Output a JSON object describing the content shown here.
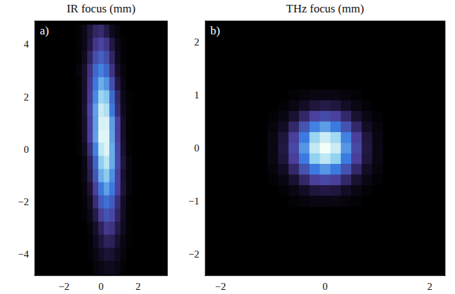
{
  "chart_data": [
    {
      "type": "heatmap",
      "title": "IR focus (mm)",
      "panel": "a)",
      "xlim": [
        -3.6,
        3.6
      ],
      "ylim": [
        -4.8,
        4.9
      ],
      "xticks": [
        {
          "value": -2,
          "label": "−2"
        },
        0,
        2
      ],
      "yticks": [
        {
          "value": -4,
          "label": "−4"
        },
        {
          "value": -2,
          "label": "−2"
        },
        0,
        2,
        4
      ],
      "cells": {
        "x": [
          -1.2,
          -0.9,
          -0.6,
          -0.3,
          0,
          0.3,
          0.6,
          0.9,
          1.2,
          1.5
        ],
        "y": [
          4.5,
          4,
          3.5,
          3,
          2.5,
          2,
          1.5,
          1,
          0.5,
          0,
          -0.5,
          -1,
          -1.5,
          -2,
          -2.5,
          -3,
          -3.5,
          -4,
          -4.5
        ],
        "values": [
          [
            0.01,
            0.04,
            0.1,
            0.16,
            0.18,
            0.12,
            0.05,
            0.02,
            0,
            0
          ],
          [
            0.01,
            0.04,
            0.11,
            0.22,
            0.27,
            0.22,
            0.11,
            0.04,
            0.01,
            0
          ],
          [
            0.01,
            0.05,
            0.16,
            0.31,
            0.39,
            0.31,
            0.16,
            0.05,
            0.01,
            0
          ],
          [
            0.02,
            0.07,
            0.21,
            0.42,
            0.52,
            0.42,
            0.21,
            0.07,
            0.02,
            0
          ],
          [
            0.01,
            0.07,
            0.23,
            0.49,
            0.65,
            0.57,
            0.31,
            0.11,
            0.03,
            0
          ],
          [
            0.01,
            0.07,
            0.24,
            0.54,
            0.78,
            0.73,
            0.43,
            0.17,
            0.04,
            0.01
          ],
          [
            0.01,
            0.08,
            0.27,
            0.61,
            0.89,
            0.83,
            0.49,
            0.19,
            0.05,
            0.01
          ],
          [
            0.01,
            0.07,
            0.25,
            0.6,
            0.93,
            0.93,
            0.6,
            0.25,
            0.07,
            0.01
          ],
          [
            0.01,
            0.07,
            0.25,
            0.61,
            0.95,
            0.95,
            0.61,
            0.25,
            0.07,
            0.01
          ],
          [
            0.01,
            0.05,
            0.2,
            0.52,
            0.87,
            0.94,
            0.64,
            0.29,
            0.08,
            0.01
          ],
          [
            0,
            0.03,
            0.15,
            0.41,
            0.75,
            0.86,
            0.64,
            0.3,
            0.1,
            0.02
          ],
          [
            0,
            0.03,
            0.13,
            0.35,
            0.65,
            0.74,
            0.56,
            0.26,
            0.08,
            0.02
          ],
          [
            0,
            0.02,
            0.09,
            0.25,
            0.49,
            0.61,
            0.49,
            0.25,
            0.09,
            0.02
          ],
          [
            0,
            0.01,
            0.06,
            0.19,
            0.37,
            0.46,
            0.37,
            0.19,
            0.06,
            0.01
          ],
          [
            0,
            0.01,
            0.04,
            0.12,
            0.25,
            0.34,
            0.29,
            0.16,
            0.06,
            0.01
          ],
          [
            0,
            0,
            0.02,
            0.07,
            0.15,
            0.23,
            0.21,
            0.12,
            0.05,
            0.01
          ],
          [
            0,
            0,
            0.01,
            0.05,
            0.1,
            0.15,
            0.14,
            0.08,
            0.03,
            0.01
          ],
          [
            0,
            0,
            0.01,
            0.03,
            0.06,
            0.09,
            0.08,
            0.05,
            0.02,
            0
          ],
          [
            0,
            0,
            0,
            0.02,
            0.03,
            0.05,
            0.05,
            0.03,
            0.01,
            0
          ]
        ]
      }
    },
    {
      "type": "heatmap",
      "title": "THz focus (mm)",
      "panel": "b)",
      "xlim": [
        -2.3,
        2.3
      ],
      "ylim": [
        -2.4,
        2.4
      ],
      "xticks": [
        {
          "value": -2,
          "label": "−2"
        },
        0,
        2
      ],
      "yticks": [
        {
          "value": -2,
          "label": "−2"
        },
        {
          "value": -1,
          "label": "−1"
        },
        0,
        1,
        2
      ],
      "cells": {
        "x": [
          -1,
          -0.8,
          -0.6,
          -0.4,
          -0.2,
          0,
          0.2,
          0.4,
          0.6,
          0.8,
          1
        ],
        "y": [
          1,
          0.8,
          0.6,
          0.4,
          0.2,
          0,
          -0.2,
          -0.4,
          -0.6,
          -0.8,
          -1
        ],
        "values": [
          [
            0,
            0,
            0.01,
            0.02,
            0.03,
            0.03,
            0.03,
            0.02,
            0.01,
            0,
            0
          ],
          [
            0,
            0.01,
            0.03,
            0.06,
            0.1,
            0.12,
            0.1,
            0.06,
            0.03,
            0.01,
            0
          ],
          [
            0.01,
            0.03,
            0.08,
            0.17,
            0.26,
            0.3,
            0.26,
            0.17,
            0.08,
            0.03,
            0.01
          ],
          [
            0.02,
            0.06,
            0.17,
            0.34,
            0.52,
            0.6,
            0.5,
            0.33,
            0.17,
            0.06,
            0.02
          ],
          [
            0.03,
            0.1,
            0.25,
            0.5,
            0.78,
            0.9,
            0.8,
            0.52,
            0.25,
            0.1,
            0.03
          ],
          [
            0.03,
            0.11,
            0.29,
            0.58,
            0.88,
            1.0,
            0.9,
            0.58,
            0.29,
            0.11,
            0.03
          ],
          [
            0.03,
            0.1,
            0.25,
            0.5,
            0.76,
            0.87,
            0.76,
            0.5,
            0.25,
            0.1,
            0.03
          ],
          [
            0.02,
            0.06,
            0.17,
            0.33,
            0.5,
            0.58,
            0.5,
            0.33,
            0.17,
            0.06,
            0.02
          ],
          [
            0.01,
            0.03,
            0.08,
            0.17,
            0.25,
            0.29,
            0.25,
            0.17,
            0.08,
            0.03,
            0.01
          ],
          [
            0,
            0.01,
            0.03,
            0.06,
            0.1,
            0.11,
            0.1,
            0.06,
            0.03,
            0.01,
            0
          ],
          [
            0,
            0,
            0.01,
            0.02,
            0.03,
            0.03,
            0.03,
            0.02,
            0.01,
            0,
            0
          ]
        ]
      }
    }
  ]
}
